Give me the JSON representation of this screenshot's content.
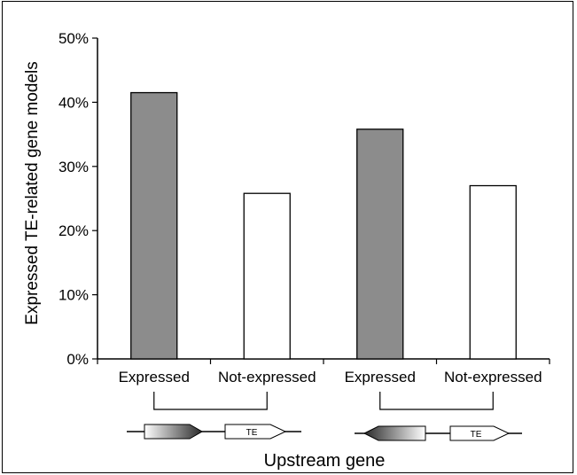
{
  "chart_data": {
    "type": "bar",
    "title": "",
    "ylabel": "Expressed TE-related gene models",
    "xlabel": "Upstream gene",
    "ylim": [
      0,
      50
    ],
    "y_ticks": [
      "0%",
      "10%",
      "20%",
      "30%",
      "40%",
      "50%"
    ],
    "categories": [
      "Expressed",
      "Not-expressed",
      "Expressed",
      "Not-expressed"
    ],
    "values": [
      41.5,
      25.8,
      35.8,
      27.0
    ],
    "bar_colors": [
      "#8c8c8c",
      "#ffffff",
      "#8c8c8c",
      "#ffffff"
    ],
    "groups": [
      {
        "orientation": "same-strand",
        "te_label": "TE"
      },
      {
        "orientation": "opposite-strand",
        "te_label": "TE"
      }
    ],
    "grid": false,
    "legend": "none"
  }
}
